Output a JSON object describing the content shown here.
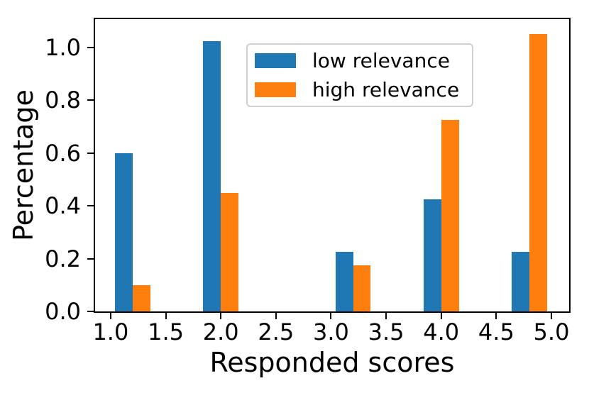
{
  "chart_data": {
    "type": "bar",
    "variant": "grouped-histogram-density",
    "title": "",
    "xlabel": "Responded scores",
    "ylabel": "Percentage",
    "x_tick_labels": [
      "1.0",
      "1.5",
      "2.0",
      "2.5",
      "3.0",
      "3.5",
      "4.0",
      "4.5",
      "5.0"
    ],
    "y_tick_labels": [
      "0.0",
      "0.2",
      "0.4",
      "0.6",
      "0.8",
      "1.0"
    ],
    "xlim": [
      0.859,
      5.161
    ],
    "ylim": [
      0.0,
      1.107
    ],
    "grid": false,
    "bar_group_centers": [
      1.2,
      2.0,
      3.2,
      4.0,
      4.8
    ],
    "bar_width": 0.16,
    "series": [
      {
        "name": "low relevance",
        "color": "#1f77b4",
        "values": [
          0.6,
          1.025,
          0.225,
          0.425,
          0.225
        ]
      },
      {
        "name": "high relevance",
        "color": "#ff7f0e",
        "values": [
          0.1,
          0.45,
          0.175,
          0.725,
          1.05
        ]
      }
    ],
    "legend": {
      "position": "upper-center-inside",
      "items": [
        "low relevance",
        "high relevance"
      ]
    },
    "axis_color": "#000000",
    "text_color": "#000000",
    "background_color": "#ffffff"
  }
}
